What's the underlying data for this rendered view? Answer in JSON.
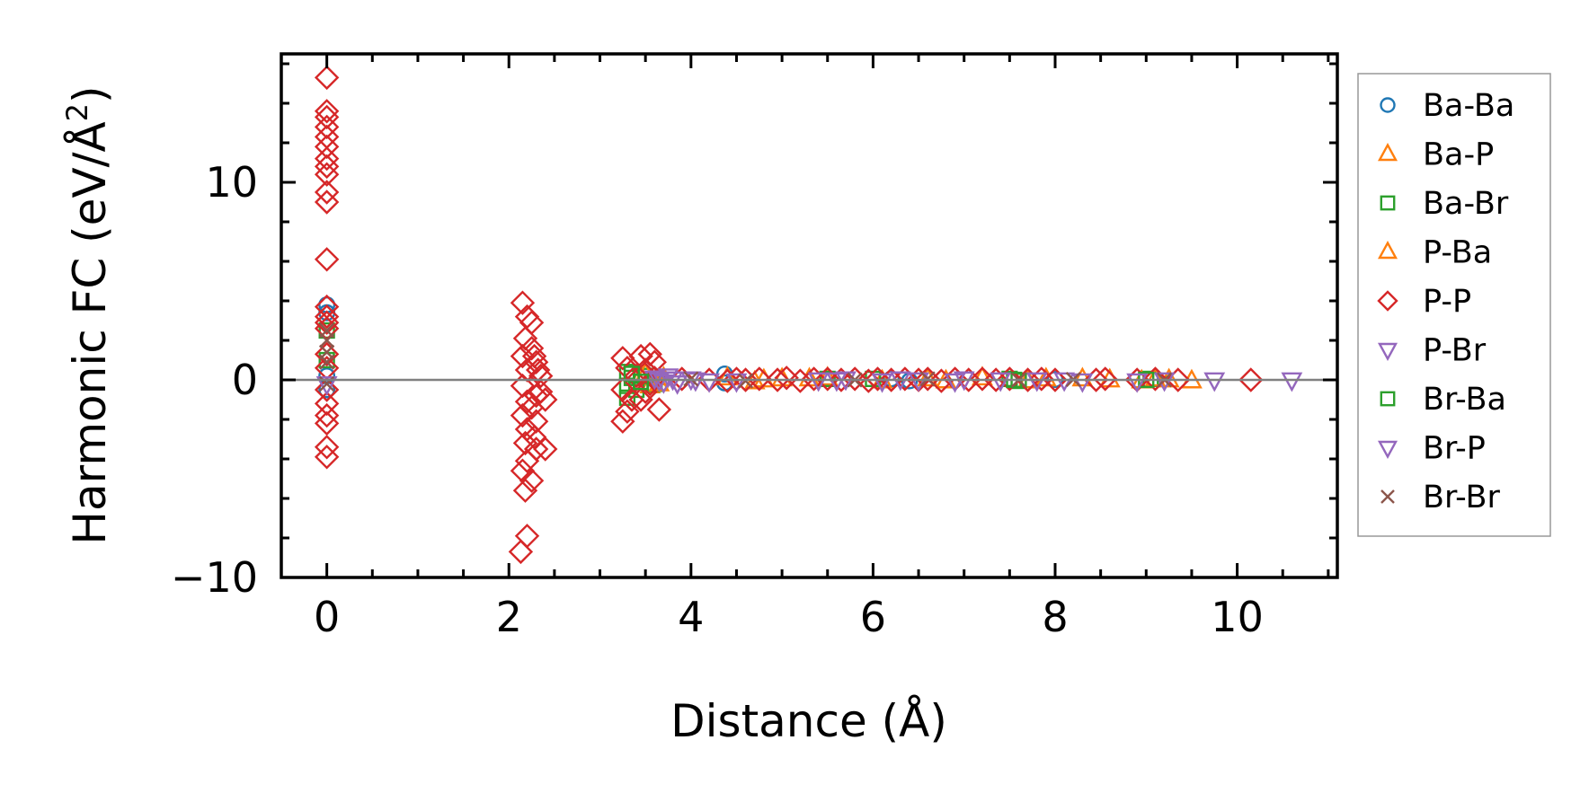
{
  "chart_data": {
    "type": "scatter",
    "xlabel": "Distance (Å)",
    "ylabel": "Harmonic FC (eV/Å²)",
    "ylabel_parts": {
      "main": "Harmonic FC (eV/Å",
      "sup": "2",
      "end": ")"
    },
    "xlim": [
      -0.5,
      11.1
    ],
    "ylim": [
      -10,
      16.5
    ],
    "x_ticks": [
      0,
      2,
      4,
      6,
      8,
      10
    ],
    "x_tick_labels": [
      "0",
      "2",
      "4",
      "6",
      "8",
      "10"
    ],
    "y_ticks": [
      -10,
      0,
      10
    ],
    "y_tick_labels": [
      "−10",
      "0",
      "10"
    ],
    "x_minor_step": 0.5,
    "y_minor_step": 2,
    "zero_line": true,
    "grid": false,
    "legend_position": "outside-right",
    "series": [
      {
        "name": "Ba-Ba",
        "marker": "circle",
        "color": "#1f77b4",
        "points": [
          [
            0,
            3.8
          ],
          [
            0,
            3.4
          ],
          [
            0,
            -0.5
          ],
          [
            0,
            0.2
          ],
          [
            4.37,
            0.3
          ],
          [
            4.37,
            -0.15
          ],
          [
            6.2,
            0.05
          ],
          [
            6.4,
            -0.05
          ],
          [
            8.0,
            0.02
          ]
        ]
      },
      {
        "name": "Ba-P",
        "marker": "triangle-up",
        "color": "#ff7f0e",
        "points": [
          [
            3.45,
            0.2
          ],
          [
            3.55,
            -0.3
          ],
          [
            3.7,
            0.1
          ],
          [
            4.4,
            0.1
          ],
          [
            4.7,
            -0.1
          ],
          [
            5.0,
            0.05
          ],
          [
            5.5,
            0.1
          ],
          [
            6.1,
            -0.05
          ],
          [
            6.6,
            0.05
          ],
          [
            7.2,
            0.1
          ],
          [
            7.7,
            -0.05
          ],
          [
            8.3,
            0.05
          ],
          [
            8.6,
            0
          ],
          [
            8.95,
            -0.05
          ],
          [
            9.25,
            0
          ],
          [
            9.5,
            -0.05
          ]
        ]
      },
      {
        "name": "Ba-Br",
        "marker": "square",
        "color": "#2ca02c",
        "points": [
          [
            0,
            2.5
          ],
          [
            0,
            1.0
          ],
          [
            3.3,
            0.4
          ],
          [
            3.3,
            -0.3
          ],
          [
            3.3,
            -0.9
          ],
          [
            3.35,
            0.1
          ],
          [
            3.4,
            -0.5
          ],
          [
            3.5,
            0.2
          ],
          [
            3.6,
            -0.2
          ],
          [
            5.5,
            0.05
          ],
          [
            6.0,
            0.05
          ],
          [
            7.5,
            0.05
          ],
          [
            7.6,
            -0.05
          ],
          [
            9.05,
            0.05
          ]
        ]
      },
      {
        "name": "P-Ba",
        "marker": "triangle-up",
        "color": "#ff7f0e",
        "points": [
          [
            3.5,
            0.3
          ],
          [
            3.65,
            -0.2
          ],
          [
            4.8,
            0
          ],
          [
            5.3,
            0.05
          ],
          [
            6.8,
            -0.05
          ],
          [
            7.9,
            0.05
          ],
          [
            9.1,
            0.05
          ]
        ]
      },
      {
        "name": "P-P",
        "marker": "diamond",
        "color": "#d62728",
        "points": [
          [
            0,
            15.3
          ],
          [
            0,
            13.6
          ],
          [
            0,
            13.3
          ],
          [
            0,
            12.8
          ],
          [
            0,
            12.3
          ],
          [
            0,
            11.8
          ],
          [
            0,
            11.2
          ],
          [
            0,
            10.8
          ],
          [
            0,
            10.4
          ],
          [
            0,
            9.5
          ],
          [
            0,
            9.0
          ],
          [
            0,
            6.1
          ],
          [
            0,
            3.7
          ],
          [
            0,
            3.2
          ],
          [
            0,
            2.9
          ],
          [
            0,
            2.6
          ],
          [
            0,
            1.3
          ],
          [
            0,
            0.6
          ],
          [
            0,
            -0.5
          ],
          [
            0,
            -1.2
          ],
          [
            0,
            -1.8
          ],
          [
            0,
            -2.2
          ],
          [
            0,
            -3.4
          ],
          [
            0,
            -3.9
          ],
          [
            2.15,
            3.9
          ],
          [
            2.2,
            3.2
          ],
          [
            2.25,
            2.9
          ],
          [
            2.18,
            2.1
          ],
          [
            2.25,
            1.6
          ],
          [
            2.15,
            1.2
          ],
          [
            2.3,
            0.9
          ],
          [
            2.2,
            0.5
          ],
          [
            2.35,
            0.2
          ],
          [
            2.15,
            -0.3
          ],
          [
            2.3,
            -0.8
          ],
          [
            2.2,
            -1.1
          ],
          [
            2.25,
            -1.4
          ],
          [
            2.15,
            -1.8
          ],
          [
            2.3,
            -2.1
          ],
          [
            2.2,
            -2.5
          ],
          [
            2.28,
            -2.9
          ],
          [
            2.18,
            -3.2
          ],
          [
            2.3,
            -3.5
          ],
          [
            2.2,
            -4.1
          ],
          [
            2.15,
            -4.6
          ],
          [
            2.25,
            -5.1
          ],
          [
            2.18,
            -5.6
          ],
          [
            2.2,
            -7.9
          ],
          [
            2.13,
            -8.7
          ],
          [
            2.4,
            -1.0
          ],
          [
            2.4,
            -3.5
          ],
          [
            2.35,
            -0.6
          ],
          [
            2.28,
            1.2
          ],
          [
            2.32,
            0.5
          ],
          [
            3.25,
            1.1
          ],
          [
            3.45,
            1.2
          ],
          [
            3.55,
            1.3
          ],
          [
            3.3,
            0.6
          ],
          [
            3.5,
            0.5
          ],
          [
            3.25,
            -0.5
          ],
          [
            3.35,
            -1.0
          ],
          [
            3.3,
            -1.6
          ],
          [
            3.45,
            -1.0
          ],
          [
            3.55,
            -0.2
          ],
          [
            3.5,
            -0.6
          ],
          [
            3.25,
            -2.1
          ],
          [
            3.4,
            0.2
          ],
          [
            3.6,
            0.1
          ],
          [
            3.65,
            -1.5
          ],
          [
            3.6,
            0.9
          ],
          [
            3.9,
            0.05
          ],
          [
            4.2,
            0
          ],
          [
            4.4,
            -0.05
          ],
          [
            4.5,
            0.05
          ],
          [
            4.6,
            0
          ],
          [
            4.75,
            0.05
          ],
          [
            4.95,
            0
          ],
          [
            5.05,
            0.1
          ],
          [
            5.2,
            -0.05
          ],
          [
            5.35,
            0.05
          ],
          [
            5.5,
            0.05
          ],
          [
            5.65,
            0
          ],
          [
            5.8,
            0.05
          ],
          [
            5.95,
            -0.05
          ],
          [
            6.05,
            0.05
          ],
          [
            6.2,
            0
          ],
          [
            6.35,
            0.05
          ],
          [
            6.5,
            0
          ],
          [
            6.6,
            0.05
          ],
          [
            6.75,
            -0.05
          ],
          [
            6.9,
            0.05
          ],
          [
            7.05,
            0
          ],
          [
            7.2,
            0.05
          ],
          [
            7.35,
            0
          ],
          [
            7.5,
            0.05
          ],
          [
            7.7,
            0
          ],
          [
            7.85,
            0.05
          ],
          [
            8.0,
            0
          ],
          [
            8.45,
            0
          ],
          [
            8.55,
            0.05
          ],
          [
            8.9,
            0
          ],
          [
            9.1,
            0.05
          ],
          [
            9.35,
            0
          ],
          [
            10.15,
            0
          ]
        ]
      },
      {
        "name": "P-Br",
        "marker": "triangle-down",
        "color": "#9467bd",
        "points": [
          [
            0,
            -0.2
          ],
          [
            3.6,
            0.1
          ],
          [
            3.7,
            -0.1
          ],
          [
            3.8,
            0.05
          ],
          [
            4.05,
            0
          ],
          [
            4.5,
            -0.05
          ],
          [
            5.4,
            0
          ],
          [
            5.7,
            0.05
          ],
          [
            6.1,
            -0.05
          ],
          [
            6.5,
            0
          ],
          [
            7.0,
            0.05
          ],
          [
            7.8,
            0
          ],
          [
            8.3,
            -0.05
          ],
          [
            9.2,
            0
          ],
          [
            9.75,
            0
          ],
          [
            10.6,
            0
          ]
        ]
      },
      {
        "name": "Br-Ba",
        "marker": "square",
        "color": "#2ca02c",
        "points": [
          [
            3.35,
            0.3
          ],
          [
            3.45,
            -0.1
          ],
          [
            7.55,
            0
          ],
          [
            9.0,
            0
          ]
        ]
      },
      {
        "name": "Br-P",
        "marker": "triangle-down",
        "color": "#9467bd",
        "points": [
          [
            3.65,
            0
          ],
          [
            3.75,
            0.2
          ],
          [
            3.85,
            -0.15
          ],
          [
            4.0,
            0.05
          ],
          [
            4.2,
            -0.05
          ],
          [
            5.6,
            0
          ],
          [
            6.3,
            0.05
          ],
          [
            6.9,
            -0.05
          ],
          [
            7.4,
            0
          ],
          [
            8.1,
            0
          ],
          [
            8.9,
            -0.05
          ]
        ]
      },
      {
        "name": "Br-Br",
        "marker": "x",
        "color": "#8c564b",
        "points": [
          [
            0,
            2.5
          ],
          [
            0,
            2.0
          ],
          [
            0,
            1.4
          ],
          [
            0,
            0.9
          ],
          [
            0,
            -0.2
          ],
          [
            4.0,
            0.05
          ],
          [
            4.6,
            -0.05
          ],
          [
            5.8,
            0
          ],
          [
            6.6,
            0.05
          ],
          [
            7.6,
            0
          ],
          [
            8.2,
            0.02
          ],
          [
            9.2,
            0
          ]
        ]
      }
    ]
  }
}
